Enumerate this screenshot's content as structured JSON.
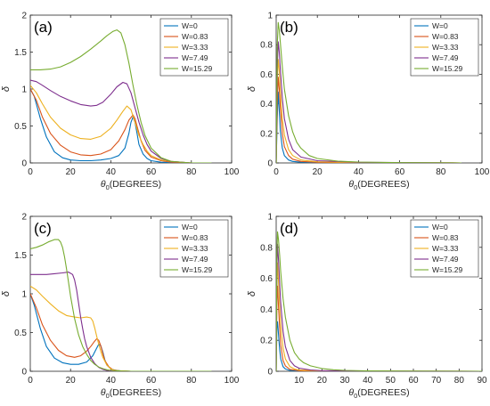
{
  "figure": {
    "xlabel_prefix": "θ",
    "xlabel_sub": "0",
    "xlabel_suffix": "(DEGREES)",
    "ylabel": "δ"
  },
  "chart_data": [
    {
      "type": "line",
      "panel_label": "(a)",
      "xlabel": "θ0(DEGREES)",
      "ylabel": "δ",
      "xlim": [
        0,
        100
      ],
      "ylim": [
        0,
        2
      ],
      "xticks": [
        0,
        20,
        40,
        60,
        80,
        100
      ],
      "yticks": [
        0,
        0.5,
        1,
        1.5,
        2
      ],
      "legend": "top-right",
      "series": [
        {
          "name": "W=0",
          "color": "#0072BD",
          "x": [
            0,
            2,
            5,
            8,
            12,
            16,
            20,
            25,
            30,
            35,
            40,
            44,
            47,
            49,
            50,
            51,
            52,
            53,
            54,
            56,
            58,
            60,
            65,
            70,
            80,
            90
          ],
          "y": [
            1.0,
            0.9,
            0.6,
            0.35,
            0.15,
            0.07,
            0.04,
            0.03,
            0.03,
            0.04,
            0.06,
            0.1,
            0.2,
            0.4,
            0.55,
            0.62,
            0.55,
            0.4,
            0.25,
            0.12,
            0.06,
            0.03,
            0.01,
            0.005,
            0.0,
            0.0
          ]
        },
        {
          "name": "W=0.83",
          "color": "#D95319",
          "x": [
            0,
            3,
            6,
            10,
            15,
            20,
            25,
            30,
            35,
            40,
            44,
            47,
            49,
            51,
            52,
            53,
            55,
            57,
            60,
            65,
            70,
            80,
            90
          ],
          "y": [
            1.0,
            0.85,
            0.62,
            0.4,
            0.24,
            0.15,
            0.11,
            0.1,
            0.12,
            0.18,
            0.3,
            0.45,
            0.58,
            0.65,
            0.6,
            0.5,
            0.3,
            0.17,
            0.08,
            0.03,
            0.01,
            0.0,
            0.0
          ]
        },
        {
          "name": "W=3.33",
          "color": "#EDB120",
          "x": [
            0,
            3,
            6,
            10,
            15,
            20,
            25,
            30,
            35,
            40,
            43,
            46,
            48,
            50,
            52,
            54,
            56,
            58,
            60,
            65,
            70,
            80,
            90
          ],
          "y": [
            1.05,
            0.95,
            0.8,
            0.62,
            0.47,
            0.38,
            0.33,
            0.32,
            0.36,
            0.47,
            0.58,
            0.7,
            0.77,
            0.72,
            0.55,
            0.37,
            0.25,
            0.16,
            0.1,
            0.04,
            0.02,
            0.0,
            0.0
          ]
        },
        {
          "name": "W=7.49",
          "color": "#7E2F8E",
          "x": [
            0,
            3,
            6,
            10,
            15,
            20,
            25,
            30,
            33,
            36,
            40,
            43,
            46,
            48,
            50,
            52,
            54,
            56,
            58,
            60,
            65,
            70,
            80,
            90
          ],
          "y": [
            1.12,
            1.1,
            1.05,
            0.98,
            0.9,
            0.84,
            0.79,
            0.77,
            0.78,
            0.82,
            0.93,
            1.03,
            1.09,
            1.07,
            0.95,
            0.75,
            0.55,
            0.38,
            0.25,
            0.16,
            0.06,
            0.02,
            0.0,
            0.0
          ]
        },
        {
          "name": "W=15.29",
          "color": "#77AC30",
          "x": [
            0,
            5,
            10,
            15,
            20,
            25,
            30,
            35,
            38,
            41,
            43,
            45,
            47,
            49,
            51,
            53,
            55,
            57,
            60,
            65,
            70,
            80,
            90
          ],
          "y": [
            1.26,
            1.26,
            1.27,
            1.3,
            1.36,
            1.44,
            1.54,
            1.65,
            1.72,
            1.78,
            1.8,
            1.76,
            1.6,
            1.35,
            1.05,
            0.78,
            0.55,
            0.37,
            0.2,
            0.07,
            0.02,
            0.0,
            0.0
          ]
        }
      ]
    },
    {
      "type": "line",
      "panel_label": "(b)",
      "xlabel": "θ0(DEGREES)",
      "ylabel": "δ",
      "xlim": [
        0,
        100
      ],
      "ylim": [
        0,
        1
      ],
      "xticks": [
        0,
        20,
        40,
        60,
        80,
        100
      ],
      "yticks": [
        0,
        0.2,
        0.4,
        0.6,
        0.8,
        1
      ],
      "legend": "top-right",
      "series": [
        {
          "name": "W=0",
          "color": "#0072BD",
          "x": [
            0,
            0.5,
            1,
            1.5,
            2,
            3,
            4,
            6,
            8,
            12,
            20,
            40,
            90
          ],
          "y": [
            0.0,
            0.3,
            0.48,
            0.35,
            0.22,
            0.1,
            0.05,
            0.02,
            0.01,
            0.005,
            0.002,
            0.0,
            0.0
          ]
        },
        {
          "name": "W=0.83",
          "color": "#D95319",
          "x": [
            0,
            0.5,
            1,
            1.5,
            2,
            3,
            4,
            6,
            8,
            12,
            20,
            40,
            90
          ],
          "y": [
            0.0,
            0.4,
            0.58,
            0.5,
            0.38,
            0.2,
            0.11,
            0.05,
            0.025,
            0.01,
            0.004,
            0.001,
            0.0
          ]
        },
        {
          "name": "W=3.33",
          "color": "#EDB120",
          "x": [
            0,
            0.5,
            1,
            1.5,
            2,
            3,
            4,
            6,
            8,
            12,
            20,
            40,
            90
          ],
          "y": [
            0.0,
            0.55,
            0.7,
            0.62,
            0.5,
            0.3,
            0.19,
            0.09,
            0.05,
            0.02,
            0.008,
            0.002,
            0.0
          ]
        },
        {
          "name": "W=7.49",
          "color": "#7E2F8E",
          "x": [
            0,
            0.5,
            1,
            1.5,
            2,
            3,
            4,
            6,
            8,
            12,
            20,
            40,
            90
          ],
          "y": [
            0.0,
            0.65,
            0.82,
            0.75,
            0.64,
            0.44,
            0.3,
            0.16,
            0.09,
            0.04,
            0.015,
            0.004,
            0.0
          ]
        },
        {
          "name": "W=15.29",
          "color": "#77AC30",
          "x": [
            0,
            0.5,
            1,
            1.5,
            2,
            3,
            4,
            6,
            8,
            10,
            12,
            16,
            20,
            30,
            40,
            60,
            90
          ],
          "y": [
            0.0,
            0.8,
            0.95,
            0.9,
            0.82,
            0.65,
            0.5,
            0.32,
            0.21,
            0.14,
            0.1,
            0.05,
            0.03,
            0.012,
            0.006,
            0.002,
            0.0
          ]
        }
      ]
    },
    {
      "type": "line",
      "panel_label": "(c)",
      "xlabel": "θ0(DEGREES)",
      "ylabel": "δ",
      "xlim": [
        0,
        100
      ],
      "ylim": [
        0,
        2
      ],
      "xticks": [
        0,
        20,
        40,
        60,
        80,
        100
      ],
      "yticks": [
        0,
        0.5,
        1,
        1.5,
        2
      ],
      "legend": "top-right",
      "series": [
        {
          "name": "W=0",
          "color": "#0072BD",
          "x": [
            0,
            2,
            5,
            8,
            12,
            16,
            20,
            24,
            28,
            31,
            33,
            34,
            35,
            36,
            37,
            38,
            40,
            42,
            45,
            50,
            60,
            90
          ],
          "y": [
            1.0,
            0.85,
            0.55,
            0.32,
            0.17,
            0.11,
            0.09,
            0.09,
            0.12,
            0.2,
            0.3,
            0.35,
            0.33,
            0.25,
            0.15,
            0.08,
            0.03,
            0.015,
            0.005,
            0.0,
            0.0,
            0.0
          ]
        },
        {
          "name": "W=0.83",
          "color": "#D95319",
          "x": [
            0,
            3,
            6,
            10,
            14,
            18,
            22,
            25,
            28,
            30,
            32,
            33,
            34,
            35,
            36,
            37,
            39,
            41,
            44,
            50,
            60,
            90
          ],
          "y": [
            1.0,
            0.82,
            0.6,
            0.4,
            0.27,
            0.2,
            0.18,
            0.2,
            0.26,
            0.32,
            0.39,
            0.42,
            0.4,
            0.33,
            0.23,
            0.14,
            0.06,
            0.02,
            0.005,
            0.0,
            0.0,
            0.0
          ]
        },
        {
          "name": "W=3.33",
          "color": "#EDB120",
          "x": [
            0,
            3,
            6,
            10,
            14,
            18,
            22,
            25,
            28,
            30,
            31,
            32,
            33,
            34,
            35,
            36,
            38,
            40,
            42,
            45,
            50,
            60,
            90
          ],
          "y": [
            1.1,
            1.05,
            0.97,
            0.87,
            0.78,
            0.72,
            0.7,
            0.69,
            0.7,
            0.69,
            0.65,
            0.56,
            0.45,
            0.35,
            0.26,
            0.18,
            0.08,
            0.03,
            0.01,
            0.005,
            0.0,
            0.0,
            0.0
          ]
        },
        {
          "name": "W=7.49",
          "color": "#7E2F8E",
          "x": [
            0,
            4,
            8,
            12,
            16,
            19,
            21,
            22,
            23,
            24,
            25,
            26,
            27,
            28,
            30,
            32,
            34,
            36,
            38,
            40,
            45,
            50,
            60,
            90
          ],
          "y": [
            1.25,
            1.25,
            1.25,
            1.26,
            1.27,
            1.28,
            1.25,
            1.18,
            1.05,
            0.88,
            0.7,
            0.55,
            0.42,
            0.32,
            0.18,
            0.1,
            0.05,
            0.025,
            0.012,
            0.006,
            0.0,
            0.0,
            0.0,
            0.0
          ]
        },
        {
          "name": "W=15.29",
          "color": "#77AC30",
          "x": [
            0,
            3,
            6,
            9,
            12,
            14,
            15,
            16,
            17,
            18,
            19,
            20,
            22,
            24,
            26,
            28,
            30,
            32,
            34,
            36,
            38,
            40,
            45,
            50,
            60,
            90
          ],
          "y": [
            1.58,
            1.6,
            1.63,
            1.67,
            1.7,
            1.7,
            1.67,
            1.6,
            1.48,
            1.32,
            1.15,
            0.97,
            0.68,
            0.47,
            0.32,
            0.22,
            0.14,
            0.09,
            0.055,
            0.035,
            0.02,
            0.012,
            0.003,
            0.0,
            0.0,
            0.0
          ]
        }
      ]
    },
    {
      "type": "line",
      "panel_label": "(d)",
      "xlabel": "θ0(DEGREES)",
      "ylabel": "δ",
      "xlim": [
        0,
        90
      ],
      "ylim": [
        0,
        1
      ],
      "xticks": [
        10,
        20,
        30,
        40,
        50,
        60,
        70,
        80,
        90
      ],
      "yticks": [
        0,
        0.2,
        0.4,
        0.6,
        0.8,
        1
      ],
      "legend": "top-right",
      "series": [
        {
          "name": "W=0",
          "color": "#0072BD",
          "x": [
            0,
            0.3,
            0.6,
            1,
            1.5,
            2,
            3,
            4,
            6,
            10,
            20,
            90
          ],
          "y": [
            0.0,
            0.28,
            0.32,
            0.24,
            0.14,
            0.08,
            0.03,
            0.015,
            0.005,
            0.002,
            0.0,
            0.0
          ]
        },
        {
          "name": "W=0.83",
          "color": "#D95319",
          "x": [
            0,
            0.3,
            0.6,
            1,
            1.5,
            2,
            3,
            4,
            6,
            10,
            20,
            90
          ],
          "y": [
            0.0,
            0.45,
            0.55,
            0.42,
            0.28,
            0.17,
            0.07,
            0.035,
            0.012,
            0.004,
            0.001,
            0.0
          ]
        },
        {
          "name": "W=3.33",
          "color": "#EDB120",
          "x": [
            0,
            0.3,
            0.6,
            1,
            1.5,
            2,
            3,
            4,
            6,
            8,
            10,
            20,
            40,
            90
          ],
          "y": [
            0.0,
            0.55,
            0.7,
            0.58,
            0.42,
            0.3,
            0.15,
            0.08,
            0.03,
            0.015,
            0.008,
            0.002,
            0.0,
            0.0
          ]
        },
        {
          "name": "W=7.49",
          "color": "#7E2F8E",
          "x": [
            0,
            0.3,
            0.6,
            1,
            1.5,
            2,
            3,
            4,
            6,
            8,
            10,
            15,
            20,
            40,
            90
          ],
          "y": [
            0.0,
            0.65,
            0.82,
            0.72,
            0.57,
            0.44,
            0.26,
            0.16,
            0.07,
            0.035,
            0.02,
            0.008,
            0.004,
            0.001,
            0.0
          ]
        },
        {
          "name": "W=15.29",
          "color": "#77AC30",
          "x": [
            0,
            0.3,
            0.6,
            1,
            1.5,
            2,
            3,
            4,
            6,
            8,
            10,
            12,
            15,
            20,
            25,
            30,
            40,
            60,
            90
          ],
          "y": [
            0.0,
            0.75,
            0.9,
            0.85,
            0.75,
            0.64,
            0.47,
            0.35,
            0.2,
            0.12,
            0.08,
            0.055,
            0.035,
            0.018,
            0.01,
            0.006,
            0.003,
            0.001,
            0.0
          ]
        }
      ]
    }
  ]
}
